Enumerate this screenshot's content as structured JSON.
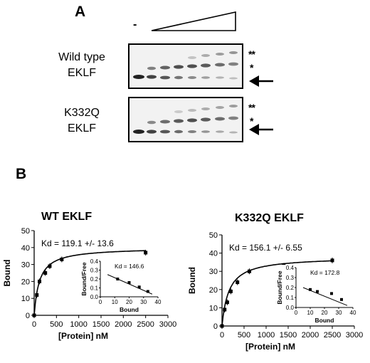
{
  "panel_a": {
    "label": "A",
    "minus_label": "-",
    "rows": [
      {
        "line1": "Wild type",
        "line2": "EKLF",
        "band_marks": [
          "**",
          "*"
        ]
      },
      {
        "line1": "K332Q",
        "line2": "EKLF",
        "band_marks": [
          "**",
          "*"
        ]
      }
    ]
  },
  "panel_b": {
    "label": "B"
  },
  "chart_data": [
    {
      "type": "scatter",
      "title": "WT EKLF",
      "xlabel": "[Protein] nM",
      "ylabel": "Bound",
      "xlim": [
        0,
        3000
      ],
      "ylim": [
        0,
        50
      ],
      "xticks": [
        "0",
        "500",
        "1000",
        "1500",
        "2000",
        "2500",
        "3000"
      ],
      "yticks": [
        "0",
        "10",
        "20",
        "30",
        "40",
        "50"
      ],
      "annotation": "Kd = 119.1 +/- 13.6",
      "points": [
        [
          0,
          0
        ],
        [
          60,
          12
        ],
        [
          120,
          20
        ],
        [
          250,
          25
        ],
        [
          350,
          29
        ],
        [
          620,
          33
        ],
        [
          2500,
          37
        ]
      ],
      "fit": {
        "bmax": 40,
        "kd": 119.1
      },
      "inset": {
        "xlabel": "Bound",
        "ylabel": "Bound/Free",
        "xlim": [
          0,
          40
        ],
        "ylim": [
          0,
          0.4
        ],
        "xticks": [
          "0",
          "10",
          "20",
          "30",
          "40"
        ],
        "yticks": [
          "0.0",
          "0.1",
          "0.2",
          "0.3",
          "0.4"
        ],
        "annotation": "Kd = 146.6",
        "points": [
          [
            12,
            0.2
          ],
          [
            20,
            0.16
          ],
          [
            27,
            0.11
          ],
          [
            33,
            0.06
          ]
        ],
        "line": [
          [
            5,
            0.25
          ],
          [
            36,
            0.03
          ]
        ]
      }
    },
    {
      "type": "scatter",
      "title": "K332Q EKLF",
      "xlabel": "[Protein] nM",
      "ylabel": "Bound",
      "xlim": [
        0,
        3000
      ],
      "ylim": [
        0,
        50
      ],
      "xticks": [
        "0",
        "500",
        "1000",
        "1500",
        "2000",
        "2500",
        "3000"
      ],
      "yticks": [
        "0",
        "10",
        "20",
        "30",
        "40",
        "50"
      ],
      "annotation": "Kd = 156.1 +/- 6.55",
      "points": [
        [
          0,
          0
        ],
        [
          60,
          9
        ],
        [
          120,
          13
        ],
        [
          200,
          19
        ],
        [
          350,
          24
        ],
        [
          620,
          30
        ],
        [
          1400,
          33
        ],
        [
          2500,
          36
        ]
      ],
      "fit": {
        "bmax": 38,
        "kd": 156.1
      },
      "inset": {
        "xlabel": "Bound",
        "ylabel": "Bound/Free",
        "xlim": [
          0,
          40
        ],
        "ylim": [
          0,
          0.4
        ],
        "xticks": [
          "0",
          "10",
          "20",
          "30",
          "40"
        ],
        "yticks": [
          "0.0",
          "0.1",
          "0.2",
          "0.3",
          "0.4"
        ],
        "annotation": "Kd = 172.8",
        "points": [
          [
            10,
            0.18
          ],
          [
            15,
            0.16
          ],
          [
            25,
            0.14
          ],
          [
            32,
            0.08
          ]
        ],
        "line": [
          [
            5,
            0.2
          ],
          [
            36,
            0.02
          ]
        ]
      }
    }
  ]
}
